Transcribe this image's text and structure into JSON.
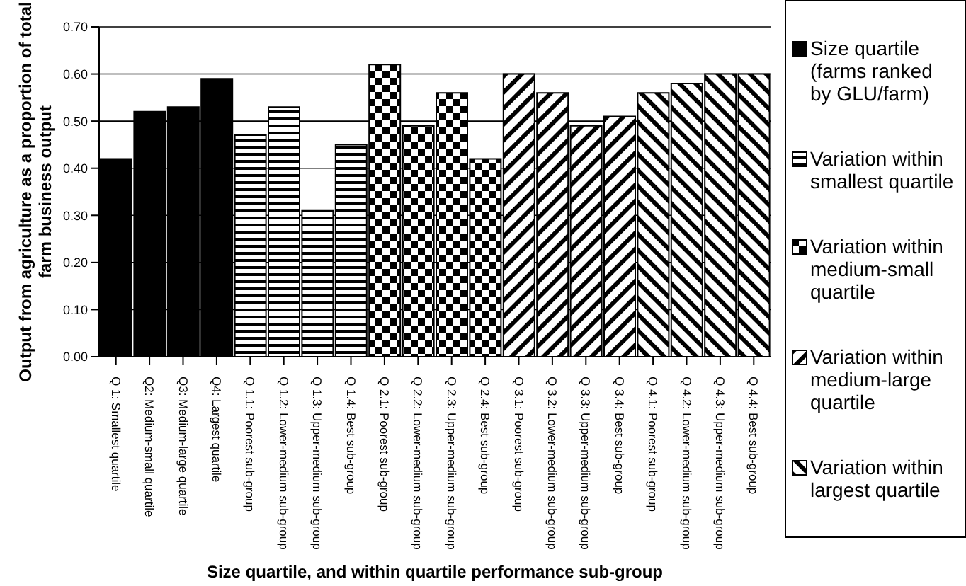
{
  "chart_data": {
    "type": "bar",
    "stacked": true,
    "xlabel": "Size quartile, and within quartile performance sub-group",
    "ylabel": "Output from agriculture as a proportion of total farm business output",
    "categories": [
      "Q 1: Smallest quartile",
      "Q2: Medium-small quartile",
      "Q3: Medium-large quartile",
      "Q4: Largest quartile",
      "Q 1.1: Poorest sub-group",
      "Q 1.2: Lower-medium sub-group",
      "Q 1.3: Upper-medium sub-group",
      "Q 1.4: Best sub-group",
      "Q 2.1: Poorest sub-group",
      "Q 2.2: Lower-medium sub-group",
      "Q 2.3: Upper-medium sub-group",
      "Q 2.4: Best sub-group",
      "Q 3.1: Poorest sub-group",
      "Q 3.2: Lower-medium sub-group",
      "Q 3.3: Upper-medium sub-group",
      "Q 3.4: Best sub-group",
      "Q 4.1: Poorest sub-group",
      "Q 4.2: Lower-medium sub-group",
      "Q 4.3: Upper-medium sub-group",
      "Q 4.4: Best sub-group"
    ],
    "series": [
      {
        "name": "Size quartile (farms ranked by GLU/farm)",
        "color": "#000000",
        "values": [
          0.42,
          0.52,
          0.53,
          0.59,
          null,
          null,
          null,
          null,
          null,
          null,
          null,
          null,
          null,
          null,
          null,
          null,
          null,
          null,
          null,
          null
        ]
      },
      {
        "name": "Variation within smallest quartile",
        "color": "#000000",
        "values": [
          null,
          null,
          null,
          null,
          0.47,
          0.53,
          0.31,
          0.45,
          null,
          null,
          null,
          null,
          null,
          null,
          null,
          null,
          null,
          null,
          null,
          null
        ]
      },
      {
        "name": "Variation within medium-small quartile",
        "color": "#000000",
        "values": [
          null,
          null,
          null,
          null,
          null,
          null,
          null,
          null,
          0.62,
          0.49,
          0.56,
          0.42,
          null,
          null,
          null,
          null,
          null,
          null,
          null,
          null
        ]
      },
      {
        "name": "Variation within medium-large quartile",
        "color": "#000000",
        "values": [
          null,
          null,
          null,
          null,
          null,
          null,
          null,
          null,
          null,
          null,
          null,
          null,
          0.6,
          0.56,
          0.49,
          0.51,
          null,
          null,
          null,
          null
        ]
      },
      {
        "name": "Variation within largest quartile",
        "color": "#000000",
        "values": [
          null,
          null,
          null,
          null,
          null,
          null,
          null,
          null,
          null,
          null,
          null,
          null,
          null,
          null,
          null,
          null,
          0.56,
          0.58,
          0.6,
          0.6
        ]
      }
    ],
    "ylim": [
      0,
      0.7
    ],
    "yticks": [
      {
        "value": 0,
        "label": "0.00"
      },
      {
        "value": 0.1,
        "label": "0.10"
      },
      {
        "value": 0.2,
        "label": "0.20"
      },
      {
        "value": 0.3,
        "label": "0.30"
      },
      {
        "value": 0.4,
        "label": "0.40"
      },
      {
        "value": 0.5,
        "label": "0.50"
      },
      {
        "value": 0.6,
        "label": "0.60"
      },
      {
        "value": 0.7,
        "label": "0.70"
      }
    ],
    "grid": "y",
    "legend": "right"
  }
}
